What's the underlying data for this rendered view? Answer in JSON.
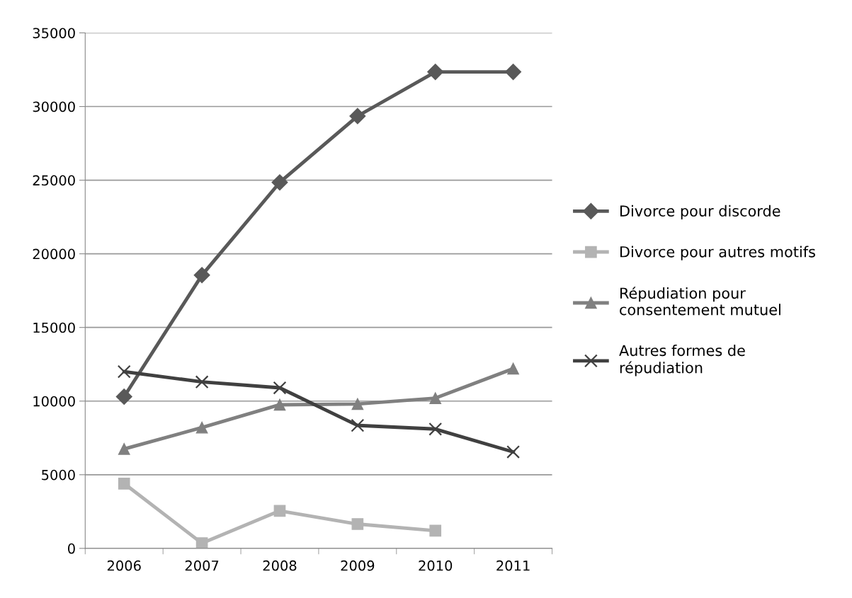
{
  "chart_data": {
    "type": "line",
    "categories": [
      "2006",
      "2007",
      "2008",
      "2009",
      "2010",
      "2011"
    ],
    "series": [
      {
        "name": "Divorce pour discorde",
        "color": "#595959",
        "marker": "diamond",
        "values": [
          10300,
          18550,
          24850,
          29350,
          32350,
          32350
        ]
      },
      {
        "name": "Divorce pour autres motifs",
        "color": "#b3b3b3",
        "marker": "square",
        "values": [
          4400,
          350,
          2550,
          1650,
          1200,
          null
        ]
      },
      {
        "name": "Répudiation pour consentement mutuel",
        "color": "#808080",
        "marker": "triangle",
        "values": [
          6750,
          8200,
          9750,
          9800,
          10200,
          12200
        ]
      },
      {
        "name": "Autres formes de répudiation",
        "color": "#404040",
        "marker": "cross",
        "values": [
          12000,
          11300,
          10900,
          8350,
          8100,
          6550
        ]
      }
    ],
    "ylim": [
      0,
      35000
    ],
    "yticks": [
      0,
      5000,
      10000,
      15000,
      20000,
      25000,
      30000,
      35000
    ],
    "grid": "y",
    "legend": "right",
    "line_style": "solid"
  }
}
